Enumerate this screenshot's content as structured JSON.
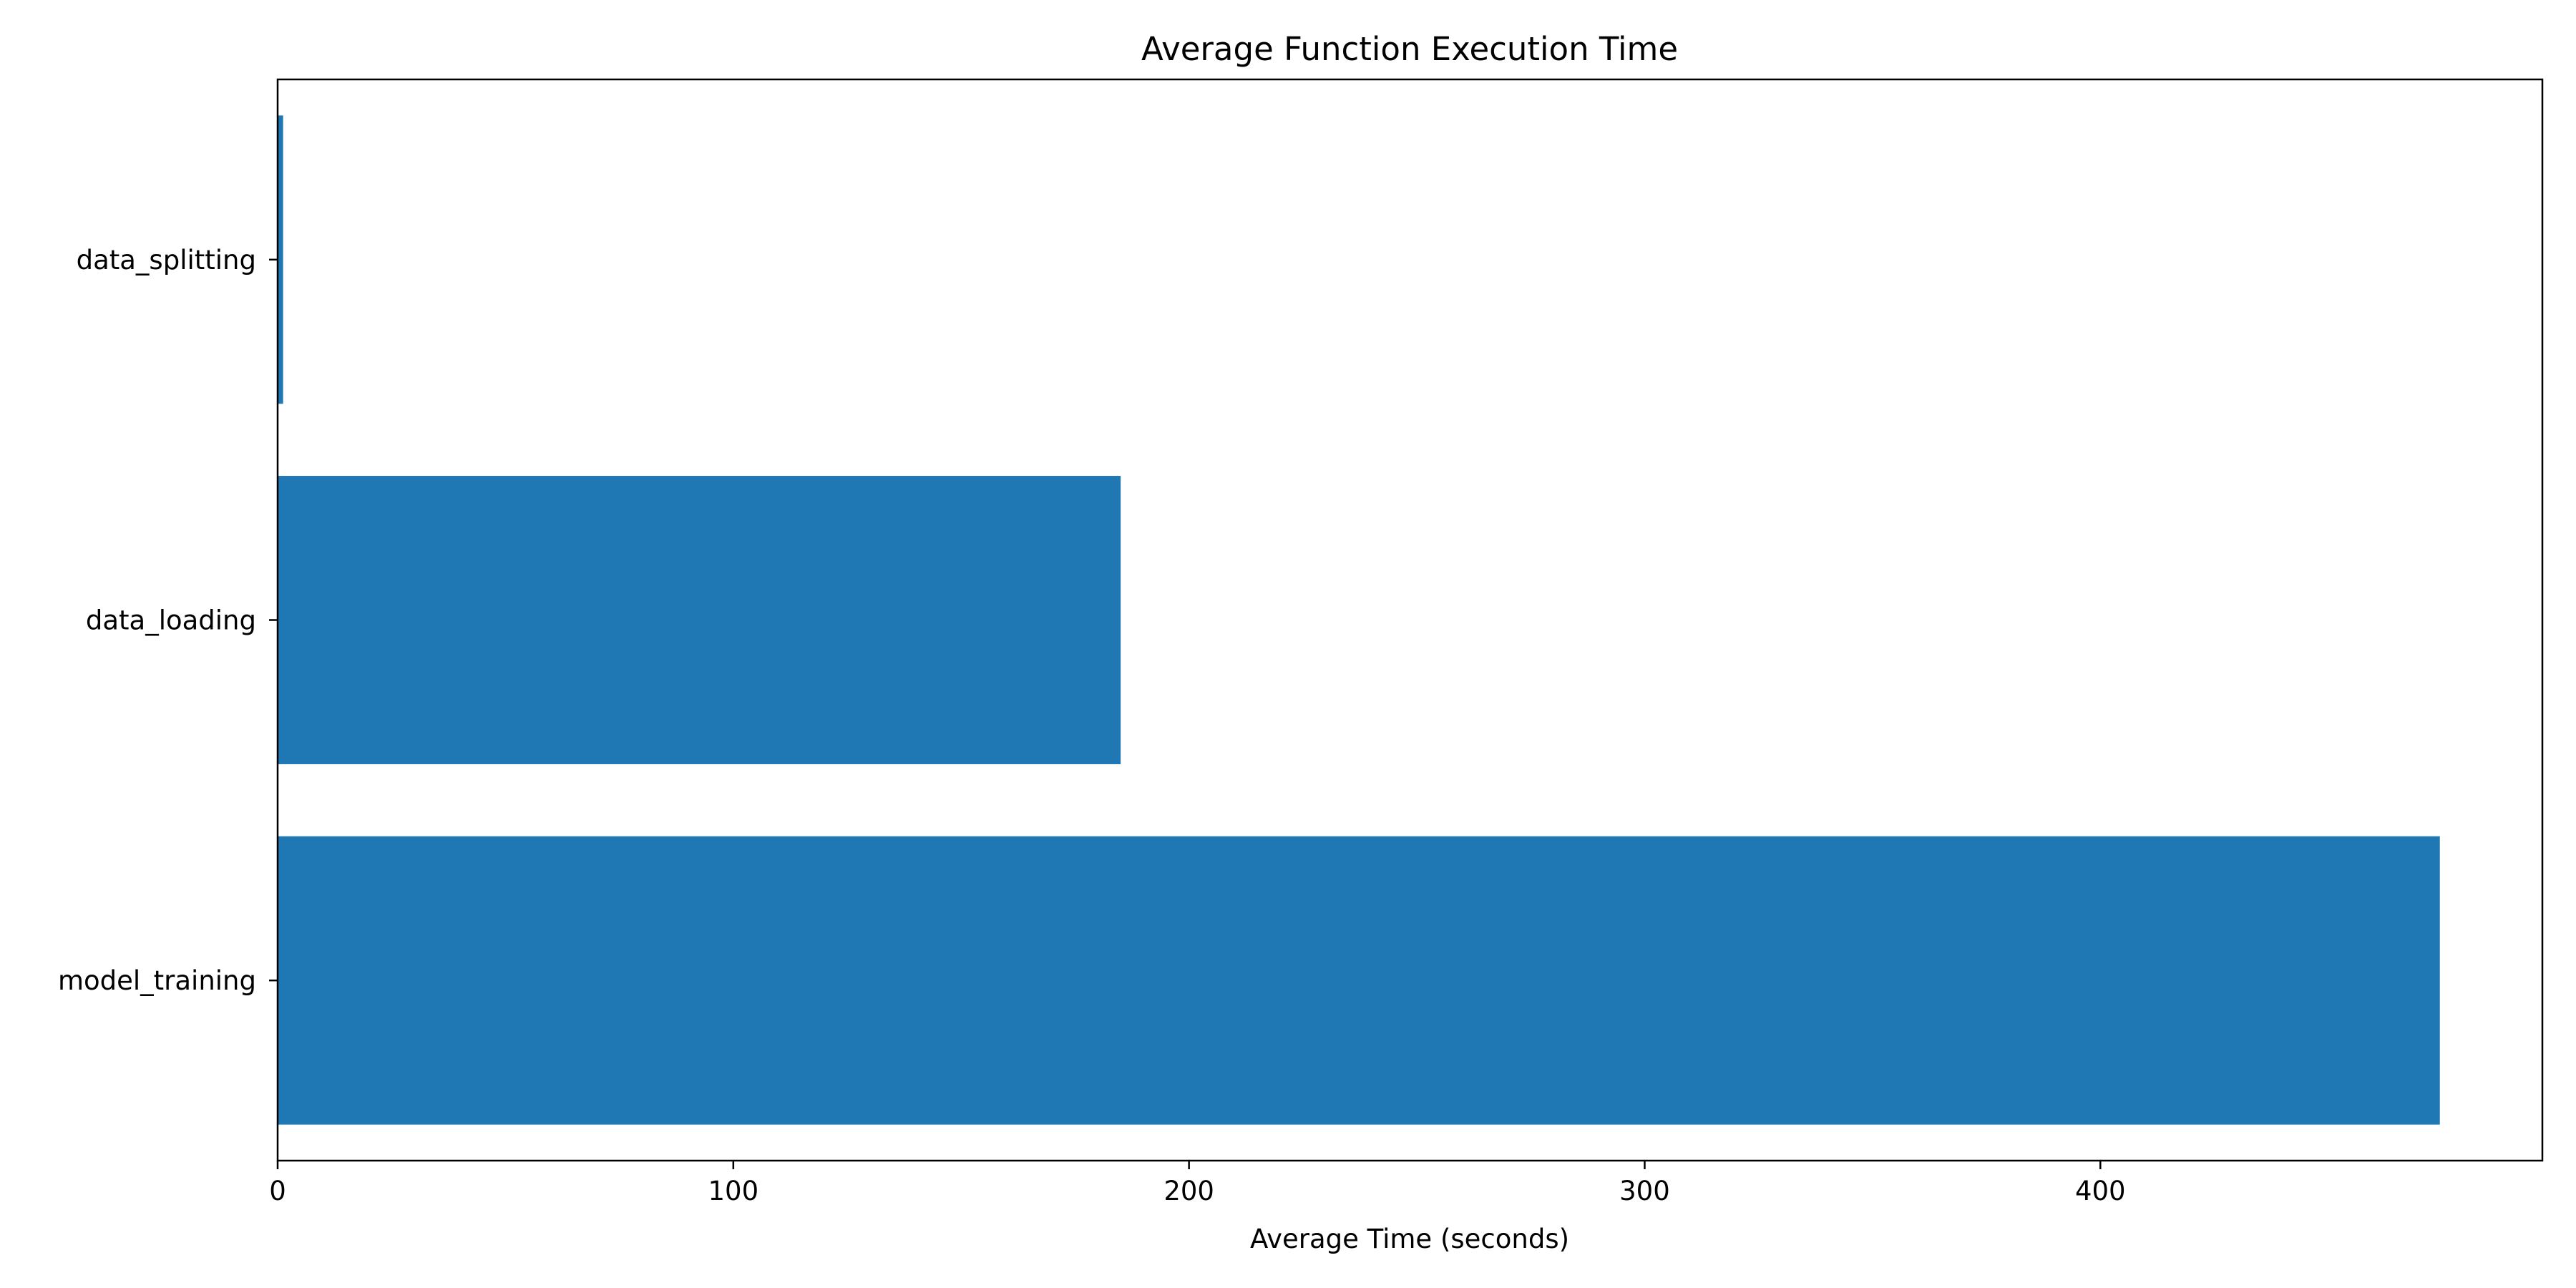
{
  "chart_data": {
    "type": "bar",
    "orientation": "horizontal",
    "title": "Average Function Execution Time",
    "xlabel": "Average Time (seconds)",
    "ylabel": "",
    "categories": [
      "model_training",
      "data_loading",
      "data_splitting"
    ],
    "values": [
      474.5,
      185,
      1.2
    ],
    "xlim": [
      0,
      497
    ],
    "xticks": [
      0,
      100,
      200,
      300,
      400
    ],
    "grid": false,
    "legend": "none",
    "bar_color": "#1f77b4"
  }
}
